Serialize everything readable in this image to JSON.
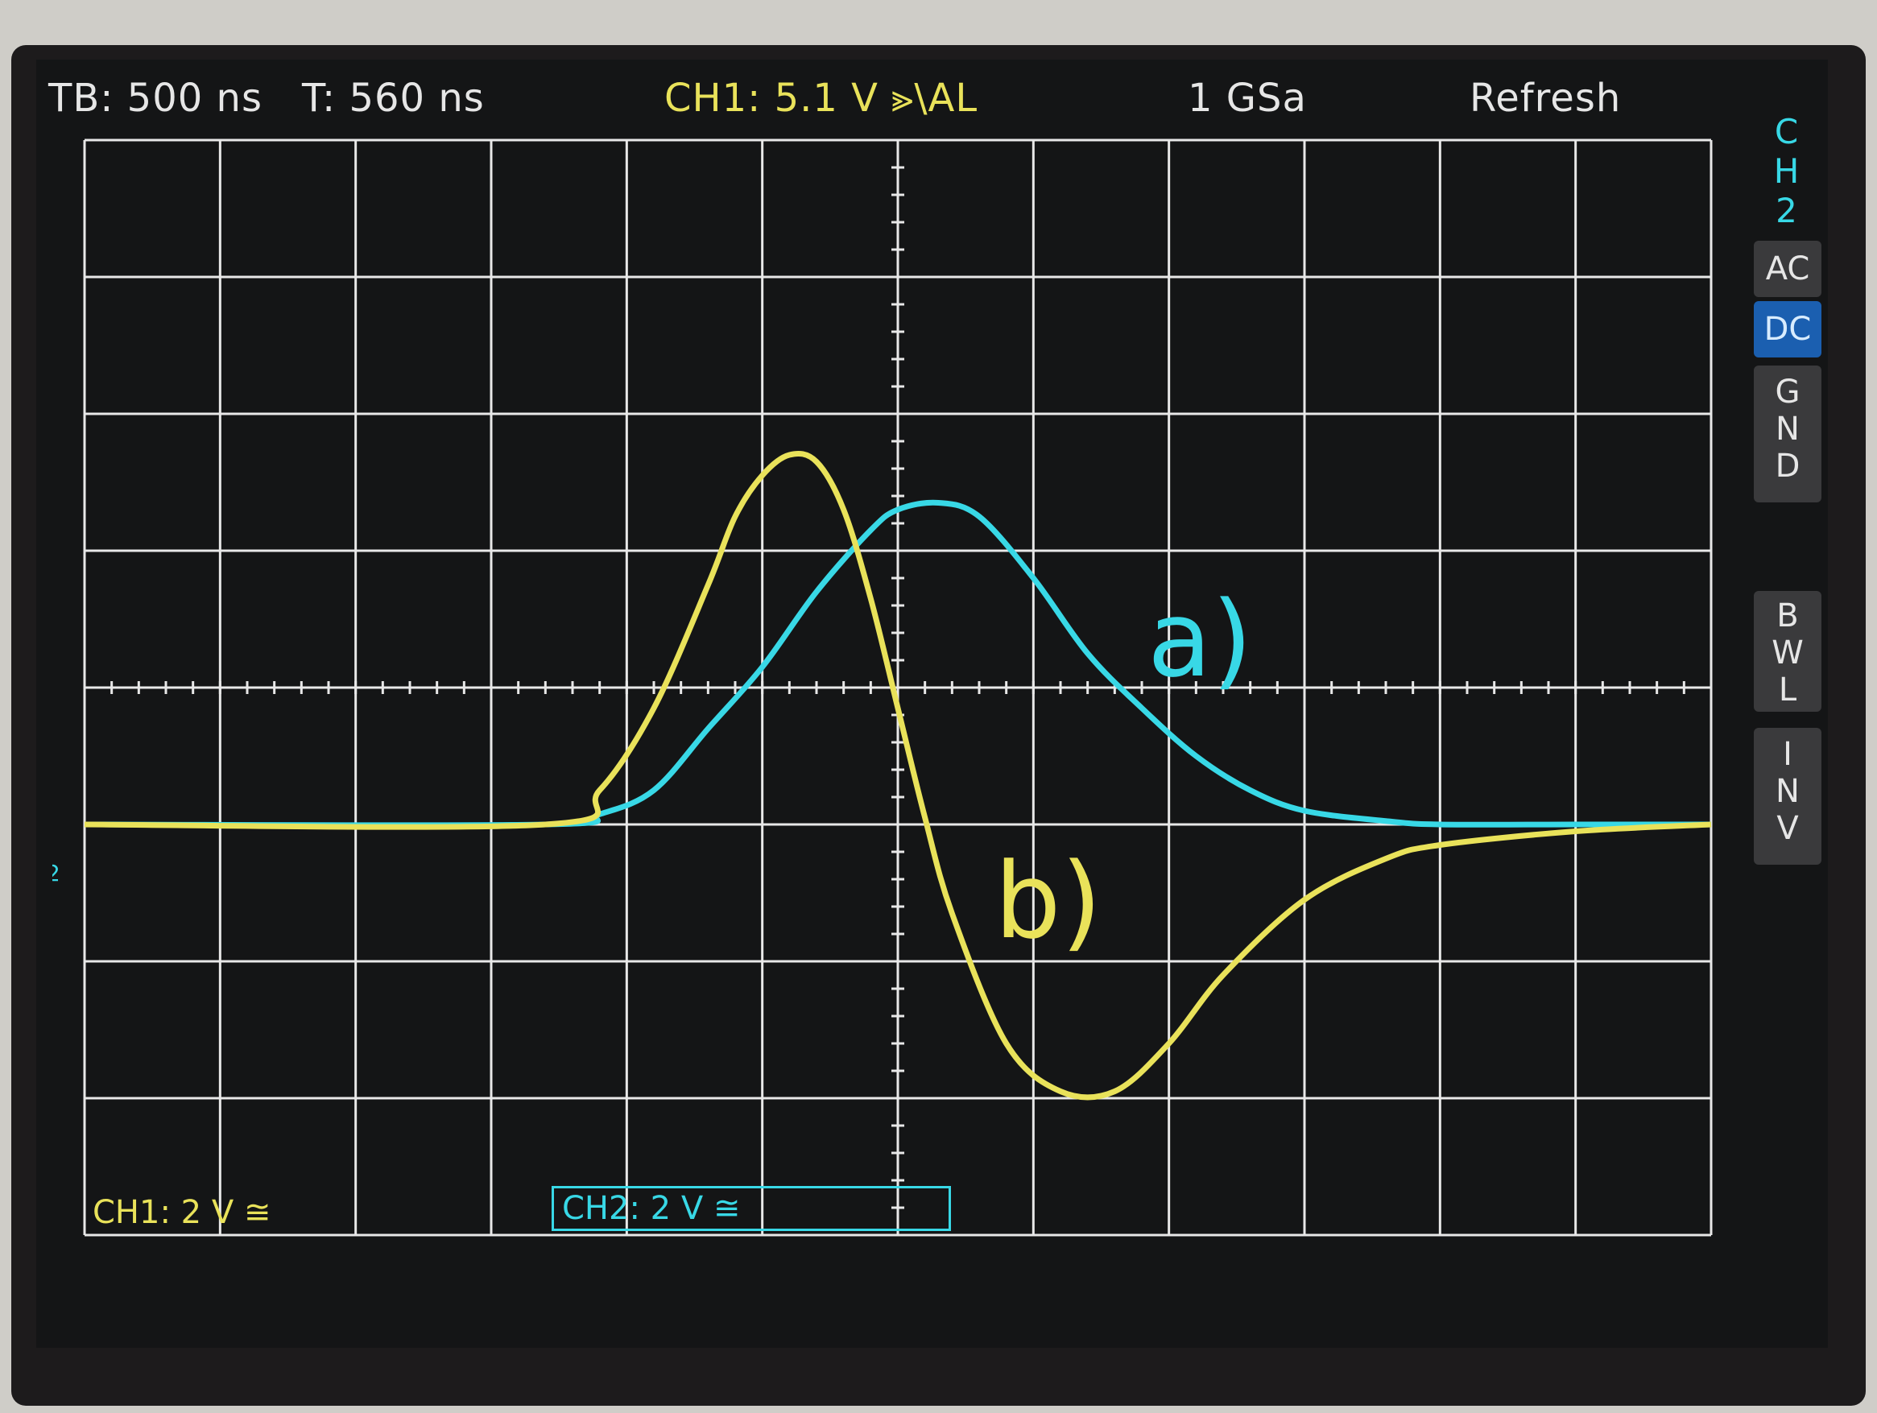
{
  "header": {
    "timebase": "TB: 500 ns",
    "trigger_time": "T: 560 ns",
    "ch1_trigger": "CH1: 5.1 V ⪢\\AL",
    "sample_rate": "1 GSa",
    "mode": "Refresh"
  },
  "side_panel": {
    "channel": "CH2",
    "coupling_ac": "AC",
    "coupling_dc": "DC",
    "gnd": "GND",
    "bwl": "BWL",
    "inv": "INV",
    "active_coupling": "DC"
  },
  "footer": {
    "ch1_scale": "CH1: 2 V ≅",
    "ch2_scale": "CH2: 2 V ≅"
  },
  "annotations": {
    "a": "a)",
    "b": "b)"
  },
  "colors": {
    "ch1": "#e9e25a",
    "ch2": "#38d8e6",
    "grid": "#e8e8e8",
    "screen_bg": "#141516"
  },
  "chart_data": {
    "type": "line",
    "xlabel": "",
    "ylabel": "",
    "x_unit": "ns",
    "y_unit": "V",
    "xlim": [
      -3000,
      3000
    ],
    "ylim": [
      -8,
      8
    ],
    "grid": true,
    "series": [
      {
        "name": "CH2",
        "color": "#38d8e6",
        "x": [
          -3000,
          -1300,
          -1100,
          -900,
          -700,
          -500,
          -300,
          -100,
          0,
          150,
          300,
          500,
          700,
          900,
          1100,
          1300,
          1500,
          1800,
          2000,
          2500,
          3000
        ],
        "y": [
          -2.0,
          -2.0,
          -1.85,
          -1.5,
          -0.6,
          0.3,
          1.4,
          2.3,
          2.6,
          2.7,
          2.5,
          1.6,
          0.5,
          -0.3,
          -1.0,
          -1.5,
          -1.8,
          -1.95,
          -2.0,
          -2.0,
          -2.0
        ]
      },
      {
        "name": "CH1",
        "color": "#e9e25a",
        "x": [
          -3000,
          -1300,
          -1100,
          -900,
          -700,
          -600,
          -500,
          -400,
          -300,
          -200,
          -100,
          0,
          100,
          200,
          400,
          600,
          800,
          1000,
          1200,
          1500,
          1800,
          2000,
          2500,
          3000
        ],
        "y": [
          -2.0,
          -2.0,
          -1.5,
          -0.3,
          1.5,
          2.5,
          3.1,
          3.4,
          3.3,
          2.6,
          1.3,
          -0.3,
          -1.9,
          -3.3,
          -5.2,
          -5.9,
          -5.9,
          -5.2,
          -4.2,
          -3.1,
          -2.5,
          -2.3,
          -2.1,
          -2.0
        ]
      }
    ],
    "ch2_marker": "2"
  }
}
